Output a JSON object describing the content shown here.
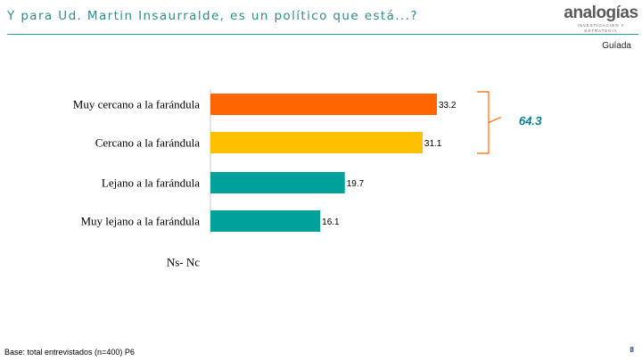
{
  "header": {
    "title": "Y para Ud. Martin Insaurralde, es un político que está...?",
    "logo_text": "analogías",
    "logo_tagline": "INVESTIGACION Y ESTRATEGIA",
    "tag": "Guíada"
  },
  "chart_data": {
    "type": "bar",
    "orientation": "horizontal",
    "title": "Y para Ud. Martin Insaurralde, es un político que está...?",
    "categories": [
      "Muy cercano a la farándula",
      "Cercano a la farándula",
      "Lejano a la farándula",
      "Muy lejano a la farándula",
      "Ns- Nc"
    ],
    "values": [
      33.2,
      31.1,
      19.7,
      16.1,
      null
    ],
    "value_labels": [
      "33.2",
      "31.1",
      "19.7",
      "16.1",
      ""
    ],
    "colors": [
      "#ff6600",
      "#ffc000",
      "#00a19a",
      "#00a19a",
      "#00a19a"
    ],
    "grouped_total": {
      "label": "64.3",
      "color": "#1f3b86",
      "highlight": "#00a19a",
      "groups": [
        "Muy cercano a la farándula",
        "Cercano a la farándula"
      ]
    },
    "xlim": [
      0,
      40
    ],
    "grid": false
  },
  "footer": {
    "footnote": "Base: total entrevistados (n=400) P6",
    "page_number": "8"
  }
}
